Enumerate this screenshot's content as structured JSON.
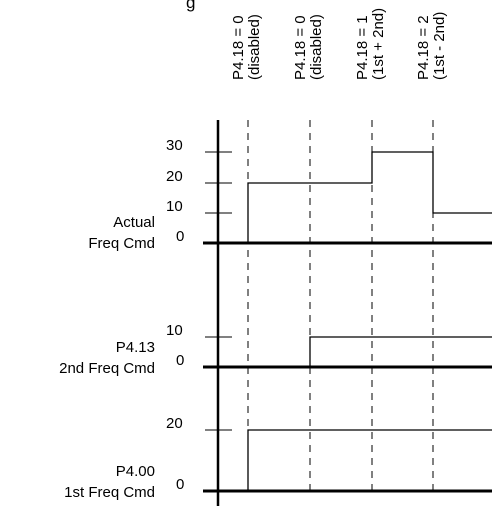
{
  "top_fragment": "g",
  "mode_labels": [
    {
      "line1": "P4.18 = 0",
      "line2": "(disabled)"
    },
    {
      "line1": "P4.18 = 0",
      "line2": "(disabled)"
    },
    {
      "line1": "P4.18 = 1",
      "line2": "(1st + 2nd)"
    },
    {
      "line1": "P4.18 = 2",
      "line2": "(1st - 2nd)"
    }
  ],
  "panels": [
    {
      "id": "actual",
      "label_line1": "Actual",
      "label_line2": "Freq Cmd",
      "ticks": [
        "30",
        "20",
        "10",
        "0"
      ],
      "tick_values": [
        30,
        20,
        10,
        0
      ],
      "segments": [
        {
          "from": 0,
          "to": 1,
          "value": 0
        },
        {
          "from": 1,
          "to": 3,
          "value": 20
        },
        {
          "from": 3,
          "to": 4,
          "value": 30
        },
        {
          "from": 4,
          "to": 5,
          "value": 10
        }
      ]
    },
    {
      "id": "second",
      "label_line1": "P4.13",
      "label_line2": "2nd Freq Cmd",
      "ticks": [
        "10",
        "0"
      ],
      "tick_values": [
        10,
        0
      ],
      "segments": [
        {
          "from": 0,
          "to": 2,
          "value": 0
        },
        {
          "from": 2,
          "to": 5,
          "value": 10
        }
      ]
    },
    {
      "id": "first",
      "label_line1": "P4.00",
      "label_line2": "1st Freq Cmd",
      "ticks": [
        "20",
        "0"
      ],
      "tick_values": [
        20,
        0
      ],
      "segments": [
        {
          "from": 0,
          "to": 1,
          "value": 0
        },
        {
          "from": 1,
          "to": 5,
          "value": 20
        }
      ]
    }
  ]
}
